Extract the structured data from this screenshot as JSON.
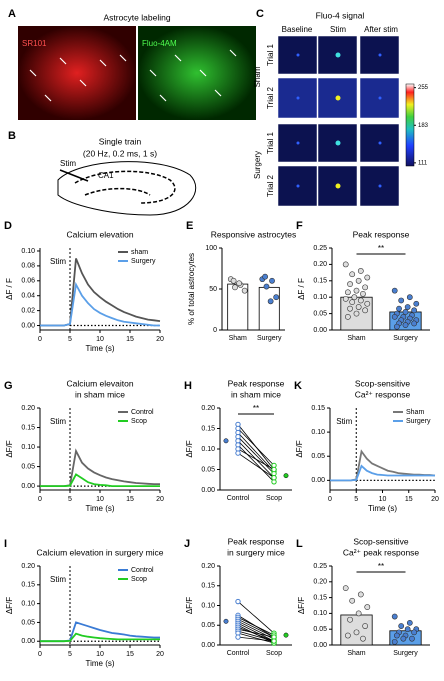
{
  "panel_a": {
    "label": "A",
    "title": "Astrocyte labeling",
    "images": [
      "SR101",
      "Fluo-4AM"
    ]
  },
  "panel_b": {
    "label": "B",
    "title": "Single train",
    "subtitle": "(20 Hz, 0.2 ms, 1 s)",
    "stim": "Stim",
    "region": "CA1"
  },
  "panel_c": {
    "label": "C",
    "title": "Fluo-4 signal",
    "columns": [
      "Baseline",
      "Stim",
      "After stim"
    ],
    "groups": [
      "Sham",
      "Surgery"
    ],
    "trials": [
      "Trial 1",
      "Trial 2",
      "Trial 1",
      "Trial 2"
    ],
    "colorbar_lim": [
      105,
      262
    ],
    "colorbar_ticks": [
      255,
      183,
      111
    ]
  },
  "chart_data": [
    {
      "type": "line",
      "label": "D",
      "title": "Calcium elevation",
      "xlabel": "Time (s)",
      "ylabel": "ΔF / F",
      "annotation": "Stim",
      "stim": 5,
      "x": [
        0,
        1,
        2,
        3,
        4,
        5,
        6,
        7,
        8,
        9,
        10,
        11,
        12,
        13,
        14,
        15,
        16,
        17,
        18,
        19,
        20
      ],
      "series": [
        {
          "name": "sham",
          "color": "#555555",
          "values": [
            0,
            0,
            0,
            0,
            0,
            0.002,
            0.09,
            0.07,
            0.055,
            0.045,
            0.038,
            0.032,
            0.027,
            0.022,
            0.018,
            0.015,
            0.012,
            0.01,
            0.008,
            0.007,
            0.006
          ]
        },
        {
          "name": "Surgery",
          "color": "#5b9fe8",
          "values": [
            0,
            0,
            0,
            0,
            0,
            0.002,
            0.055,
            0.04,
            0.03,
            0.022,
            0.017,
            0.013,
            0.01,
            0.007,
            0.005,
            0.004,
            0.003,
            0.002,
            0.001,
            0,
            0
          ]
        }
      ],
      "xlim": [
        0,
        20
      ],
      "xticks": [
        0,
        5,
        10,
        15,
        20
      ],
      "ylim": [
        -0.006,
        0.104
      ],
      "yticks": [
        {
          "value": 0,
          "label": "0.00"
        },
        0.02,
        0.04,
        0.06,
        0.08,
        {
          "value": 0.1,
          "label": "0.10"
        }
      ]
    },
    {
      "type": "bar",
      "label": "E",
      "title": "Responsive astrocytes",
      "ylabel": "% of total astrocytes",
      "categories": [
        "Sham",
        "Surgery"
      ],
      "values": [
        56,
        52
      ],
      "colors": [
        "#ffffff",
        "#ffffff"
      ],
      "points": [
        [
          62,
          55,
          52,
          48,
          57,
          60
        ],
        [
          62,
          60,
          53,
          40,
          35,
          65
        ]
      ],
      "ylim": [
        0,
        100
      ],
      "yticks": [
        0,
        50,
        100
      ]
    },
    {
      "type": "bar",
      "label": "F",
      "title": "Peak response",
      "ylabel": "ΔF / F",
      "annotation": "**",
      "categories": [
        "Sham",
        "Surgery"
      ],
      "values": [
        0.1,
        0.055
      ],
      "colors": [
        "#dddddd",
        "#5b9fe8"
      ],
      "points": [
        [
          0.2,
          0.18,
          0.17,
          0.16,
          0.15,
          0.14,
          0.13,
          0.12,
          0.115,
          0.11,
          0.1,
          0.095,
          0.09,
          0.085,
          0.08,
          0.07,
          0.065,
          0.06,
          0.05,
          0.04
        ],
        [
          0.12,
          0.1,
          0.09,
          0.08,
          0.07,
          0.065,
          0.06,
          0.055,
          0.05,
          0.045,
          0.04,
          0.04,
          0.035,
          0.03,
          0.03,
          0.025,
          0.02,
          0.02,
          0.015,
          0.01
        ]
      ],
      "ylim": [
        0,
        0.25
      ],
      "yticks": [
        {
          "value": 0,
          "label": "0.00"
        },
        0.05,
        {
          "value": 0.1,
          "label": "0.10"
        },
        0.15,
        {
          "value": 0.2,
          "label": "0.20"
        },
        0.25
      ]
    },
    {
      "type": "line",
      "label": "G",
      "title": "Calcium elevaiton",
      "subtitle": "in sham mice",
      "xlabel": "Time (s)",
      "ylabel": "ΔF/F",
      "annotation": "Stim",
      "stim": 5,
      "x": [
        0,
        1,
        2,
        3,
        4,
        5,
        6,
        7,
        8,
        9,
        10,
        11,
        12,
        13,
        14,
        15,
        16,
        17,
        18,
        19,
        20
      ],
      "series": [
        {
          "name": "Control",
          "color": "#666666",
          "values": [
            0,
            0,
            0,
            0,
            0,
            0.002,
            0.09,
            0.06,
            0.045,
            0.035,
            0.028,
            0.022,
            0.018,
            0.015,
            0.012,
            0.01,
            0.008,
            0.007,
            0.006,
            0.005,
            0.005
          ]
        },
        {
          "name": "Scop",
          "color": "#22cc22",
          "values": [
            0,
            0,
            0,
            0,
            0,
            0.001,
            0.03,
            0.02,
            0.01,
            0.005,
            0.003,
            0.002,
            0,
            0,
            0,
            0,
            0,
            0,
            0,
            0,
            0
          ]
        }
      ],
      "xlim": [
        0,
        20
      ],
      "xticks": [
        0,
        5,
        10,
        15,
        20
      ],
      "ylim": [
        -0.01,
        0.2
      ],
      "yticks": [
        {
          "value": 0,
          "label": "0.00"
        },
        0.05,
        {
          "value": 0.1,
          "label": "0.10"
        },
        0.15,
        {
          "value": 0.2,
          "label": "0.20"
        }
      ]
    },
    {
      "type": "paired",
      "label": "H",
      "title": "Peak response",
      "subtitle": "in sham mice",
      "ylabel": "ΔF/F",
      "annotation": "**",
      "categories": [
        "Control",
        "Scop"
      ],
      "colors": [
        "#4a7fd0",
        "#22cc22"
      ],
      "values": [
        [
          0.16,
          0.15,
          0.14,
          0.13,
          0.12,
          0.11,
          0.1,
          0.09
        ],
        [
          0.05,
          0.06,
          0.045,
          0.04,
          0.03,
          0.02,
          0.05,
          0.03
        ]
      ],
      "means": [
        0.12,
        0.035
      ],
      "ylim": [
        0,
        0.2
      ],
      "yticks": [
        {
          "value": 0,
          "label": "0.00"
        },
        0.05,
        {
          "value": 0.1,
          "label": "0.10"
        },
        0.15,
        {
          "value": 0.2,
          "label": "0.20"
        }
      ]
    },
    {
      "type": "line",
      "label": "K",
      "title": "Scop-sensitive",
      "subtitle": "Ca²⁺ response",
      "xlabel": "Time (s)",
      "ylabel": "ΔF/F",
      "annotation": "Stim",
      "stim": 5,
      "x": [
        0,
        1,
        2,
        3,
        4,
        5,
        6,
        7,
        8,
        9,
        10,
        11,
        12,
        13,
        14,
        15,
        16,
        17,
        18,
        19,
        20
      ],
      "series": [
        {
          "name": "Sham",
          "color": "#777777",
          "values": [
            0,
            0,
            0,
            0,
            0,
            0.002,
            0.06,
            0.045,
            0.035,
            0.03,
            0.025,
            0.02,
            0.018,
            0.015,
            0.014,
            0.013,
            0.012,
            0.012,
            0.011,
            0.011,
            0.01
          ]
        },
        {
          "name": "Surgery",
          "color": "#5b9fe8",
          "values": [
            0,
            0,
            0,
            0,
            0,
            0.001,
            0.03,
            0.02,
            0.015,
            0.012,
            0.011,
            0.01,
            0.01,
            0.01,
            0.01,
            0.01,
            0.01,
            0.01,
            0.01,
            0.01,
            0.01
          ]
        }
      ],
      "xlim": [
        0,
        20
      ],
      "xticks": [
        0,
        5,
        10,
        15,
        20
      ],
      "ylim": [
        -0.02,
        0.15
      ],
      "yticks": [
        {
          "value": 0,
          "label": "0.00"
        },
        0.05,
        {
          "value": 0.1,
          "label": "0.10"
        },
        0.15
      ]
    },
    {
      "type": "line",
      "label": "I",
      "title": "Calcium elevation in surgery mice",
      "xlabel": "Time (s)",
      "ylabel": "ΔF/F",
      "annotation": "Stim",
      "stim": 5,
      "x": [
        0,
        1,
        2,
        3,
        4,
        5,
        6,
        7,
        8,
        9,
        10,
        11,
        12,
        13,
        14,
        15,
        16,
        17,
        18,
        19,
        20
      ],
      "series": [
        {
          "name": "Control",
          "color": "#3a7bd5",
          "values": [
            0,
            0,
            0,
            0,
            0,
            0.002,
            0.05,
            0.045,
            0.04,
            0.035,
            0.03,
            0.026,
            0.022,
            0.02,
            0.018,
            0.015,
            0.013,
            0.012,
            0.011,
            0.01,
            0.01
          ]
        },
        {
          "name": "Scop",
          "color": "#22cc22",
          "values": [
            0,
            0,
            0,
            0,
            0,
            0.001,
            0.02,
            0.015,
            0.012,
            0.01,
            0.008,
            0.007,
            0.006,
            0.005,
            0.005,
            0.005,
            0.005,
            0.005,
            0.005,
            0.005,
            0.005
          ]
        }
      ],
      "xlim": [
        0,
        20
      ],
      "xticks": [
        0,
        5,
        10,
        15,
        20
      ],
      "ylim": [
        -0.01,
        0.2
      ],
      "yticks": [
        {
          "value": 0,
          "label": "0.00"
        },
        0.05,
        {
          "value": 0.1,
          "label": "0.10"
        },
        0.15,
        {
          "value": 0.2,
          "label": "0.20"
        }
      ]
    },
    {
      "type": "paired",
      "label": "J",
      "title": "Peak response",
      "subtitle": "in surgery mice",
      "ylabel": "ΔF/F",
      "categories": [
        "Control",
        "Scop"
      ],
      "colors": [
        "#4a7fd0",
        "#22cc22"
      ],
      "values": [
        [
          0.11,
          0.075,
          0.07,
          0.065,
          0.06,
          0.055,
          0.05,
          0.045,
          0.04,
          0.035,
          0.03,
          0.02
        ],
        [
          0.03,
          0.02,
          0.025,
          0.02,
          0.015,
          0.01,
          0.005,
          0.01,
          0.02,
          0.01,
          0.005,
          0.01
        ]
      ],
      "means": [
        0.06,
        0.025
      ],
      "ylim": [
        0,
        0.2
      ],
      "yticks": [
        {
          "value": 0,
          "label": "0.00"
        },
        0.05,
        {
          "value": 0.1,
          "label": "0.10"
        },
        0.15,
        {
          "value": 0.2,
          "label": "0.20"
        }
      ]
    },
    {
      "type": "bar",
      "label": "L",
      "title": "Scop-sensitive",
      "subtitle": "Ca²⁺ peak response",
      "ylabel": "ΔF/F",
      "annotation": "**",
      "categories": [
        "Sham",
        "Surgery"
      ],
      "values": [
        0.095,
        0.045
      ],
      "colors": [
        "#dddddd",
        "#5b9fe8"
      ],
      "points": [
        [
          0.18,
          0.16,
          0.14,
          0.12,
          0.1,
          0.08,
          0.06,
          0.04,
          0.03,
          0.02
        ],
        [
          0.09,
          0.07,
          0.06,
          0.05,
          0.05,
          0.04,
          0.04,
          0.03,
          0.03,
          0.02,
          0.02,
          0.01
        ]
      ],
      "ylim": [
        0,
        0.25
      ],
      "yticks": [
        {
          "value": 0,
          "label": "0.00"
        },
        0.05,
        {
          "value": 0.1,
          "label": "0.10"
        },
        0.15,
        {
          "value": 0.2,
          "label": "0.20"
        },
        0.25
      ]
    }
  ]
}
